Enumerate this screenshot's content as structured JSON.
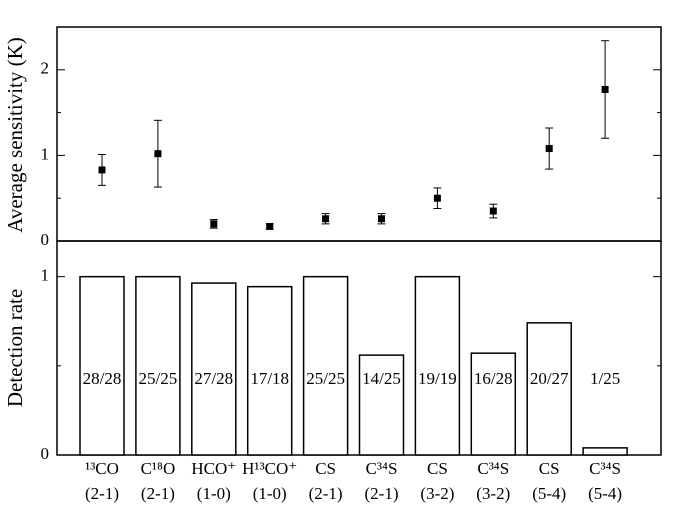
{
  "chart_data": [
    {
      "type": "scatter",
      "y_label": "Average sensitivity (K)",
      "values": [
        0.83,
        1.02,
        0.2,
        0.17,
        0.26,
        0.26,
        0.5,
        0.35,
        1.08,
        1.77
      ],
      "errors": [
        0.18,
        0.39,
        0.05,
        0.03,
        0.06,
        0.06,
        0.12,
        0.08,
        0.24,
        0.57
      ],
      "color": "#000000",
      "ylim": [
        0,
        2.5
      ],
      "yticks": [
        0,
        1,
        2
      ],
      "minor_yticks": [
        0.5,
        1.5
      ]
    },
    {
      "type": "bar",
      "y_label": "Detection rate",
      "categories": [
        "¹³CO",
        "C¹⁸O",
        "HCO⁺",
        "H¹³CO⁺",
        "CS",
        "C³⁴S",
        "CS",
        "C³⁴S",
        "CS",
        "C³⁴S"
      ],
      "transitions": [
        "(2-1)",
        "(2-1)",
        "(1-0)",
        "(1-0)",
        "(2-1)",
        "(2-1)",
        "(3-2)",
        "(3-2)",
        "(5-4)",
        "(5-4)"
      ],
      "values": [
        1,
        1,
        0.964,
        0.944,
        1,
        0.56,
        1,
        0.571,
        0.741,
        0.04
      ],
      "value_labels": [
        "28/28",
        "25/25",
        "27/28",
        "17/18",
        "25/25",
        "14/25",
        "19/19",
        "16/28",
        "20/27",
        "1/25"
      ],
      "color": "#ffffff",
      "ylim": [
        0,
        1.2
      ],
      "yticks": [
        0,
        1
      ],
      "minor_yticks": [
        0.5
      ]
    }
  ]
}
